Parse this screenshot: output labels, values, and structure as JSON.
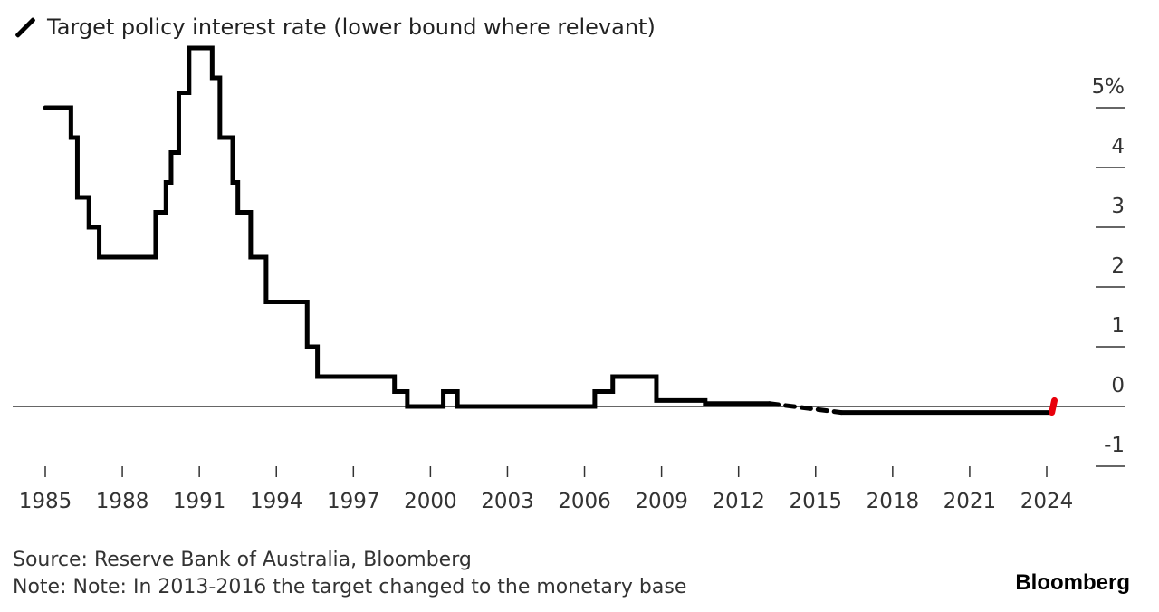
{
  "chart_data": {
    "type": "line",
    "title": "",
    "legend": [
      "Target policy interest rate (lower bound where relevant)"
    ],
    "legend_placement": "top-left",
    "xlabel": "",
    "ylabel": "",
    "xlim": [
      1985,
      2024.3
    ],
    "ylim": [
      -1,
      6
    ],
    "x_ticks": [
      1985,
      1988,
      1991,
      1994,
      1997,
      2000,
      2003,
      2006,
      2009,
      2012,
      2015,
      2018,
      2021,
      2024
    ],
    "x_tick_labels": [
      "1985",
      "1988",
      "1991",
      "1994",
      "1997",
      "2000",
      "2003",
      "2006",
      "2009",
      "2012",
      "2015",
      "2018",
      "2021",
      "2024"
    ],
    "y_ticks": [
      5,
      4,
      3,
      2,
      1,
      0,
      -1
    ],
    "y_tick_labels": [
      "5%",
      "4",
      "3",
      "2",
      "1",
      "0",
      "-1"
    ],
    "series": [
      {
        "name": "Target policy interest rate",
        "style": "solid",
        "color": "#000000",
        "step": true,
        "x": [
          1985.0,
          1986.0,
          1986.25,
          1986.7,
          1987.1,
          1989.3,
          1989.7,
          1989.9,
          1990.2,
          1990.6,
          1991.5,
          1991.8,
          1992.3,
          1992.5,
          1993.0,
          1993.6,
          1995.2,
          1995.6,
          1998.6,
          1999.1,
          2000.5,
          2001.05,
          2006.4,
          2007.1,
          2008.8,
          2010.7,
          2013.2
        ],
        "y": [
          5.0,
          4.5,
          3.5,
          3.0,
          2.5,
          3.25,
          3.75,
          4.25,
          5.25,
          6.0,
          5.5,
          4.5,
          3.75,
          3.25,
          2.5,
          1.75,
          1.0,
          0.5,
          0.25,
          0.0,
          0.25,
          0.0,
          0.25,
          0.5,
          0.1,
          0.05,
          0.05
        ]
      },
      {
        "name": "Monetary base target period",
        "style": "dashed",
        "color": "#000000",
        "step": false,
        "x": [
          2013.2,
          2016.0
        ],
        "y": [
          0.05,
          -0.1
        ]
      },
      {
        "name": "Negative rate period",
        "style": "solid",
        "color": "#000000",
        "step": false,
        "x": [
          2016.0,
          2024.2
        ],
        "y": [
          -0.1,
          -0.1
        ]
      },
      {
        "name": "Latest",
        "style": "solid",
        "color": "#e8000b",
        "step": false,
        "x": [
          2024.2,
          2024.3
        ],
        "y": [
          -0.1,
          0.1
        ]
      }
    ]
  },
  "footer": {
    "source": "Source: Reserve Bank of Australia, Bloomberg",
    "note": "Note: Note: In 2013-2016 the target changed to the monetary base",
    "brand": "Bloomberg"
  }
}
